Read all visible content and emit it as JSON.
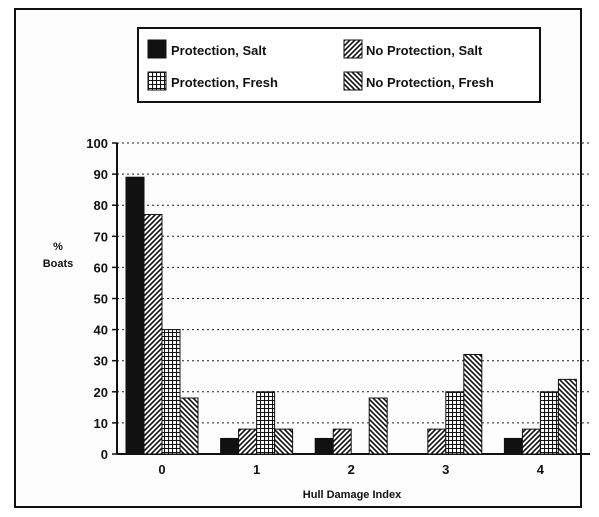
{
  "chart_data": {
    "type": "bar",
    "categories": [
      "0",
      "1",
      "2",
      "3",
      "4"
    ],
    "series": [
      {
        "name": "Protection, Salt",
        "values": [
          89,
          5,
          5,
          0,
          5
        ],
        "pattern": "solid"
      },
      {
        "name": "No Protection, Salt",
        "values": [
          77,
          8,
          8,
          8,
          8
        ],
        "pattern": "diag-right"
      },
      {
        "name": "Protection, Fresh",
        "values": [
          40,
          20,
          0,
          20,
          20
        ],
        "pattern": "grid"
      },
      {
        "name": "No Protection, Fresh",
        "values": [
          18,
          8,
          18,
          32,
          24
        ],
        "pattern": "diag-left"
      }
    ],
    "xlabel": "Hull Damage Index",
    "ylabel": [
      "%",
      "Boats"
    ],
    "ylim": [
      0,
      100
    ],
    "yticks": [
      "0",
      "10",
      "20",
      "30",
      "40",
      "50",
      "60",
      "70",
      "80",
      "90",
      "100"
    ],
    "grid": "dotted horizontal",
    "legend_position": "top-center",
    "colors": {
      "ink": "#111111",
      "background": "#ffffff"
    }
  }
}
